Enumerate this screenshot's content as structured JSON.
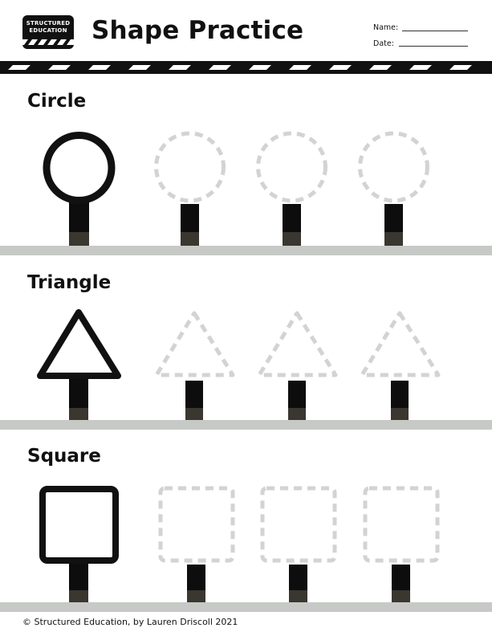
{
  "header": {
    "logo_line1": "STRUCTURED",
    "logo_line2": "EDUCATION",
    "title": "Shape Practice",
    "name_label": "Name:",
    "date_label": "Date:"
  },
  "sections": [
    {
      "title": "Circle",
      "shape": "circle",
      "trace_count": 3
    },
    {
      "title": "Triangle",
      "shape": "triangle",
      "trace_count": 3
    },
    {
      "title": "Square",
      "shape": "square",
      "trace_count": 3
    }
  ],
  "footer": {
    "copyright": "© Structured Education, by Lauren Driscoll 2021"
  },
  "colors": {
    "ink": "#111111",
    "dashed_guide": "#d3d3d3",
    "ground": "#c7c9c7",
    "post": "#0d0d0d",
    "post_base": "#3a3630"
  }
}
